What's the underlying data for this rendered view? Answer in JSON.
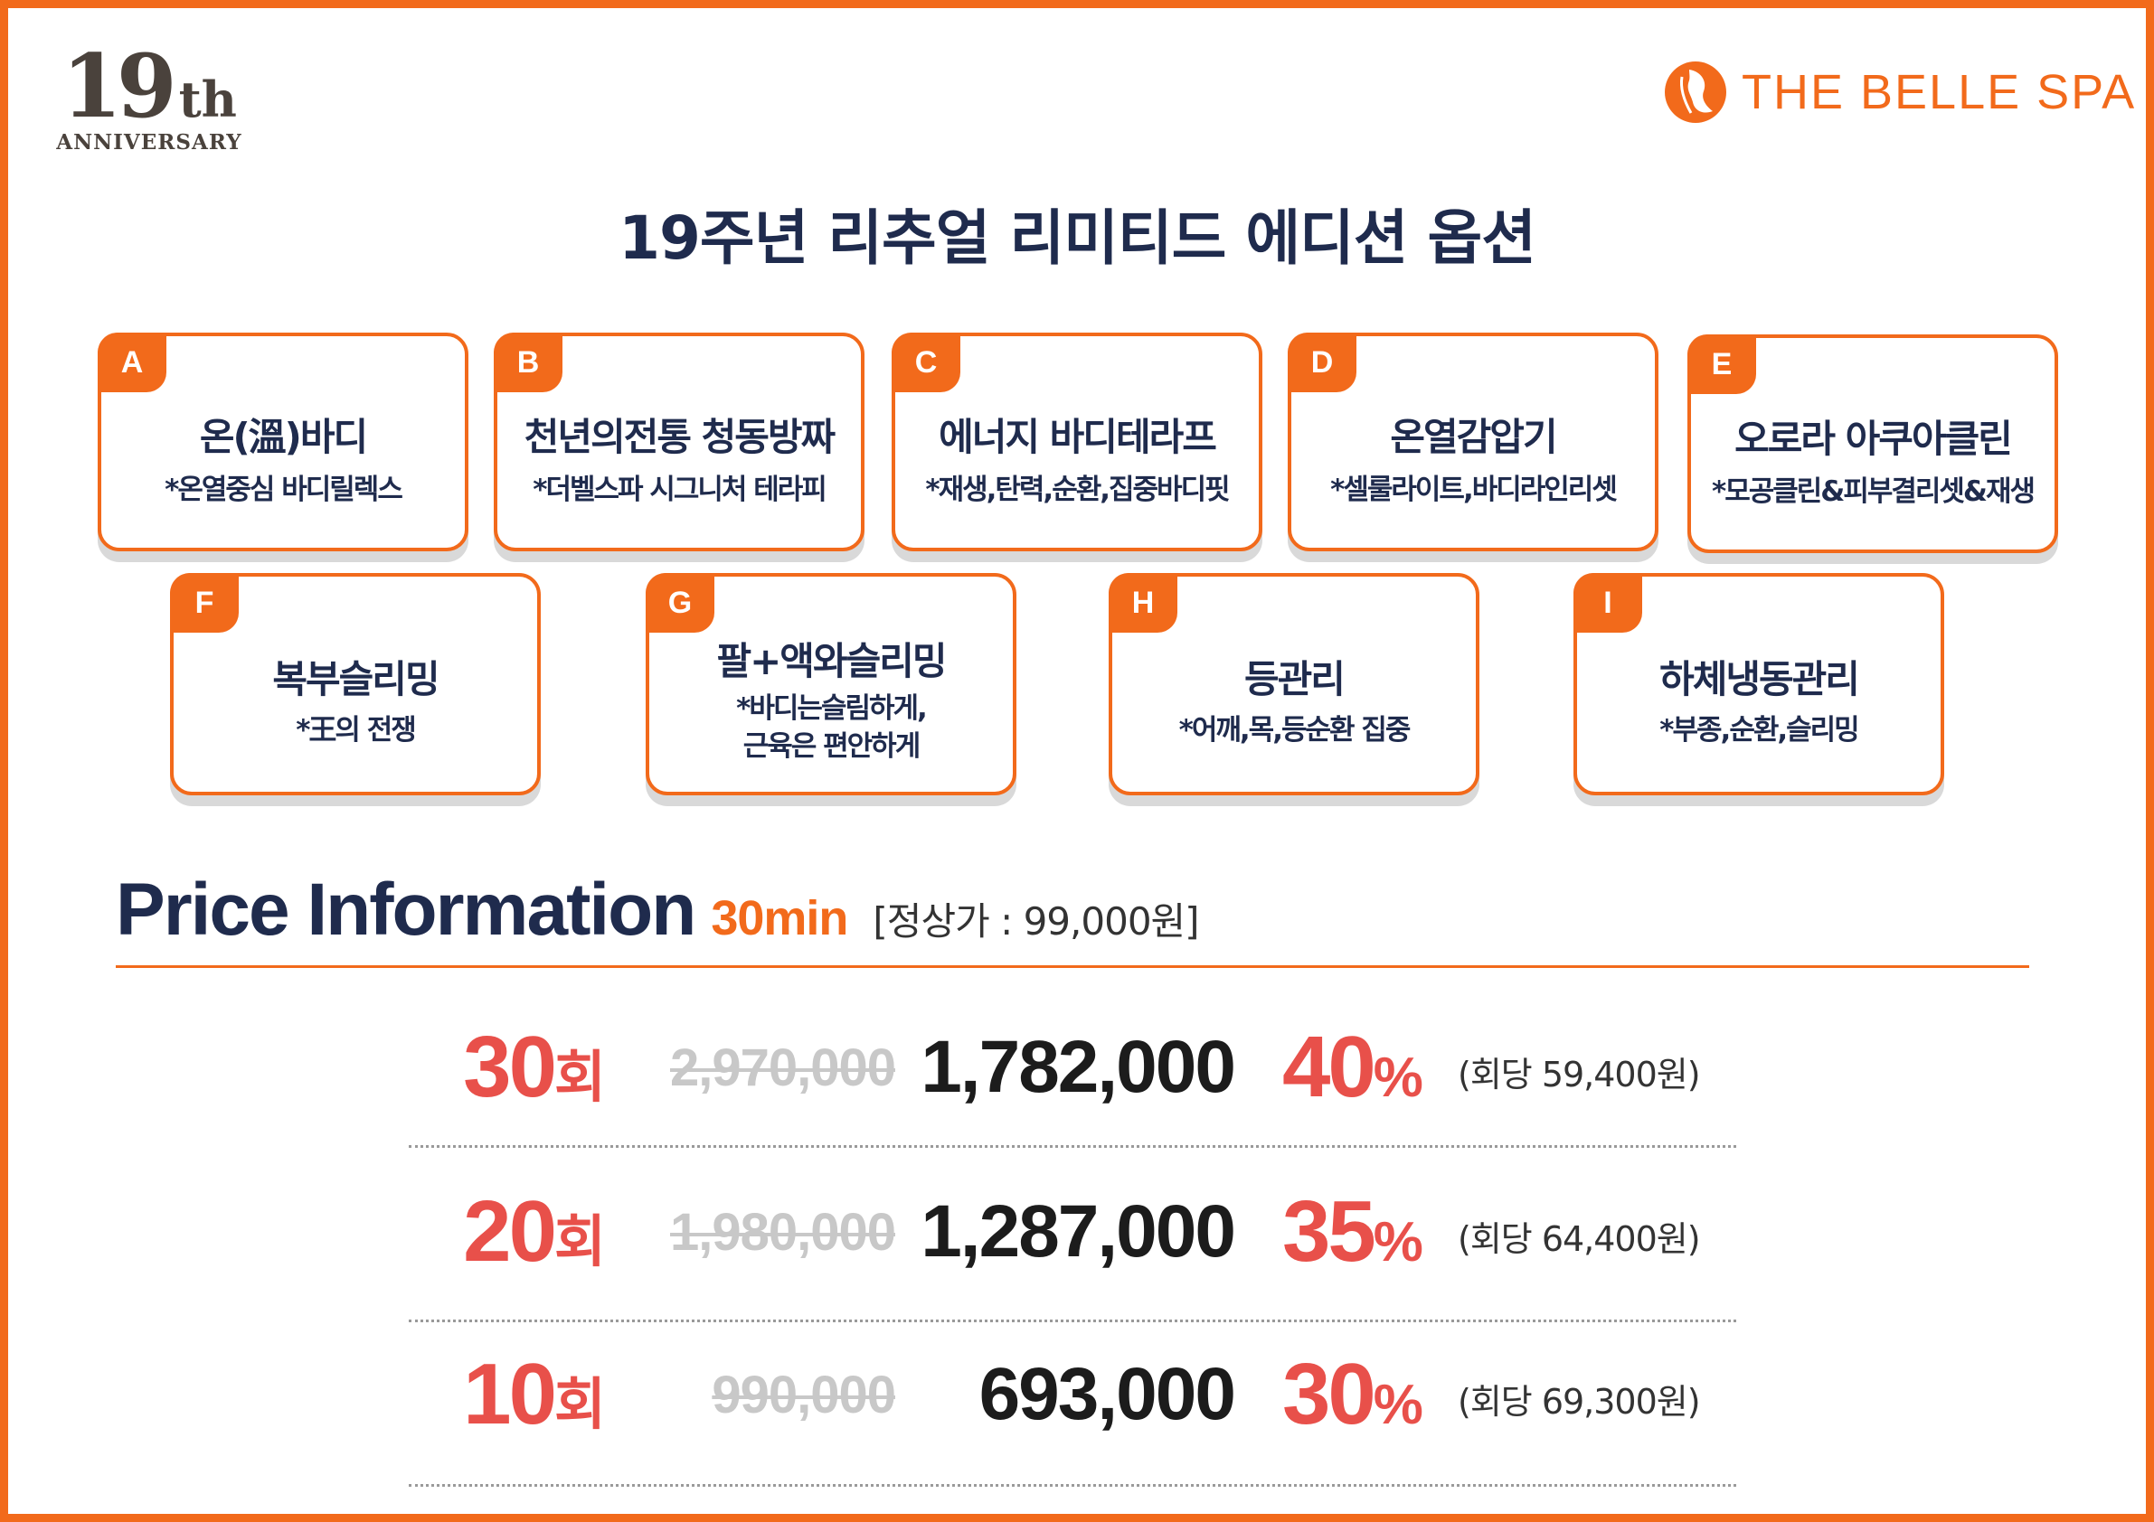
{
  "colors": {
    "accent": "#f26a1b",
    "navy": "#1f2b4d",
    "red": "#e8504a"
  },
  "anniversary": {
    "number": "19",
    "suffix": "th",
    "label": "ANNIVERSARY"
  },
  "brand": {
    "name": "THE BELLE SPA",
    "icon": "belle-spa-logo-icon"
  },
  "title": "19주년 리추얼 리미티드 에디션 옵션",
  "options": [
    {
      "letter": "A",
      "title": "온(溫)바디",
      "desc": [
        "*온열중심 바디릴렉스"
      ]
    },
    {
      "letter": "B",
      "title": "천년의전통 청동방짜",
      "desc": [
        "*더벨스파 시그니처 테라피"
      ]
    },
    {
      "letter": "C",
      "title": "에너지 바디테라프",
      "desc": [
        "*재생,탄력,순환,집중바디핏"
      ]
    },
    {
      "letter": "D",
      "title": "온열감압기",
      "desc": [
        "*셀룰라이트,바디라인리셋"
      ]
    },
    {
      "letter": "E",
      "title": "오로라 아쿠아클린",
      "desc": [
        "*모공클린&피부결리셋&재생"
      ]
    },
    {
      "letter": "F",
      "title": "복부슬리밍",
      "desc": [
        "*王의 전쟁"
      ]
    },
    {
      "letter": "G",
      "title": "팔+액와슬리밍",
      "desc": [
        "*바디는슬림하게,",
        "근육은 편안하게"
      ]
    },
    {
      "letter": "H",
      "title": "등관리",
      "desc": [
        "*어깨,목,등순환 집중"
      ]
    },
    {
      "letter": "I",
      "title": "하체냉동관리",
      "desc": [
        "*부종,순환,슬리밍"
      ]
    }
  ],
  "price": {
    "heading": "Price Information",
    "duration": "30min",
    "regular": "[정상가 : 99,000원]",
    "rows": [
      {
        "count": "30",
        "unit": "회",
        "original": "2,970,000",
        "sale": "1,782,000",
        "discount": "40",
        "percent": "%",
        "per_session": "(회당 59,400원)"
      },
      {
        "count": "20",
        "unit": "회",
        "original": "1,980,000",
        "sale": "1,287,000",
        "discount": "35",
        "percent": "%",
        "per_session": "(회당 64,400원)"
      },
      {
        "count": "10",
        "unit": "회",
        "original": "990,000",
        "sale": "693,000",
        "discount": "30",
        "percent": "%",
        "per_session": "(회당 69,300원)"
      }
    ]
  }
}
